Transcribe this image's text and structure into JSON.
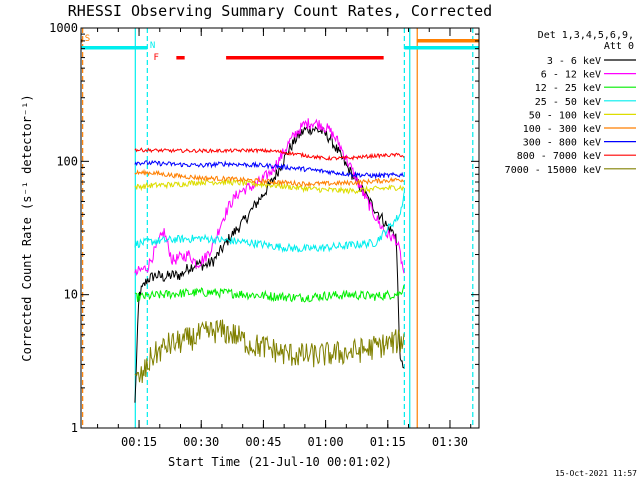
{
  "chart_data": {
    "type": "line",
    "title": "RHESSI Observing Summary Count Rates, Corrected",
    "xlabel": "Start Time (21-Jul-10 00:01:02)",
    "ylabel": "Corrected Count Rate (s⁻¹ detector⁻¹)",
    "footer": "15-Oct-2021 11:57",
    "yscale": "log",
    "ylim": [
      1,
      1000
    ],
    "xlim_minutes": [
      1,
      97
    ],
    "x_unit": "minutes since 00:00",
    "yticks": [
      {
        "value": 1,
        "label": "1"
      },
      {
        "value": 10,
        "label": "10"
      },
      {
        "value": 100,
        "label": "100"
      },
      {
        "value": 1000,
        "label": "1000"
      }
    ],
    "xticks": [
      {
        "value": 15,
        "label": "00:15"
      },
      {
        "value": 30,
        "label": "00:30"
      },
      {
        "value": 45,
        "label": "00:45"
      },
      {
        "value": 60,
        "label": "01:00"
      },
      {
        "value": 75,
        "label": "01:15"
      },
      {
        "value": 90,
        "label": "01:30"
      }
    ],
    "legend": {
      "placement": "right",
      "header": [
        "Det 1,3,4,5,6,9,",
        "Att 0"
      ]
    },
    "series": [
      {
        "name": "3 - 6 keV",
        "color": "#000000",
        "x": [
          14,
          15,
          17,
          19,
          21,
          23,
          25,
          27,
          29,
          31,
          33,
          35,
          37,
          39,
          41,
          43,
          45,
          47,
          49,
          51,
          53,
          55,
          57,
          59,
          61,
          63,
          65,
          67,
          69,
          71,
          73,
          75,
          77,
          78,
          79
        ],
        "y": [
          1.5,
          10,
          13,
          14,
          13.5,
          14,
          14,
          16,
          17,
          16.5,
          18,
          22,
          27,
          32,
          38,
          47,
          57,
          70,
          90,
          120,
          150,
          172,
          176,
          168,
          150,
          118,
          92,
          75,
          60,
          48,
          40,
          32,
          28,
          3,
          3
        ]
      },
      {
        "name": "6 - 12 keV",
        "color": "#ff00ff",
        "x": [
          14,
          15,
          17,
          19,
          21,
          23,
          25,
          27,
          29,
          31,
          33,
          35,
          37,
          39,
          41,
          43,
          45,
          47,
          49,
          51,
          53,
          55,
          57,
          59,
          61,
          63,
          65,
          67,
          69,
          71,
          73,
          75,
          77,
          78,
          79
        ],
        "y": [
          14,
          15,
          16,
          22,
          30,
          18,
          19,
          20,
          17,
          19,
          24,
          36,
          48,
          58,
          63,
          66,
          74,
          85,
          105,
          135,
          165,
          190,
          196,
          188,
          170,
          140,
          105,
          78,
          58,
          44,
          34,
          28,
          26,
          20,
          14
        ]
      },
      {
        "name": "12 - 25 keV",
        "color": "#00ee00",
        "x": [
          14,
          18,
          24,
          30,
          36,
          42,
          48,
          54,
          60,
          66,
          72,
          78,
          79
        ],
        "y": [
          9.5,
          9.8,
          10.2,
          10.4,
          10.3,
          10.0,
          9.7,
          9.5,
          9.8,
          10.0,
          9.7,
          10.2,
          12
        ]
      },
      {
        "name": "25 - 50 keV",
        "color": "#00eeee",
        "x": [
          14,
          18,
          24,
          30,
          36,
          42,
          48,
          54,
          60,
          66,
          72,
          78,
          79
        ],
        "y": [
          24,
          25,
          26,
          26.5,
          25.5,
          24.5,
          23,
          22,
          22.5,
          23.5,
          24.5,
          40,
          60
        ]
      },
      {
        "name": "50 - 100 keV",
        "color": "#dddd00",
        "x": [
          14,
          18,
          24,
          30,
          36,
          42,
          48,
          54,
          60,
          66,
          72,
          78,
          79
        ],
        "y": [
          64,
          66,
          67,
          70,
          70,
          68,
          66,
          63,
          61,
          60,
          62,
          64,
          62
        ]
      },
      {
        "name": "100 - 300 keV",
        "color": "#ff7f00",
        "x": [
          14,
          18,
          24,
          30,
          36,
          42,
          48,
          54,
          60,
          66,
          72,
          78,
          79
        ],
        "y": [
          82,
          82,
          78,
          75,
          74,
          72,
          70,
          68,
          68,
          69,
          71,
          73,
          72
        ]
      },
      {
        "name": "300 - 800 keV",
        "color": "#0000ff",
        "x": [
          14,
          18,
          24,
          30,
          36,
          42,
          48,
          54,
          60,
          66,
          72,
          78,
          79
        ],
        "y": [
          98,
          97,
          95,
          93,
          96,
          94,
          92,
          88,
          84,
          80,
          78,
          79,
          80
        ]
      },
      {
        "name": "800 - 7000 keV",
        "color": "#ff0000",
        "x": [
          14,
          18,
          24,
          30,
          36,
          42,
          48,
          54,
          60,
          66,
          72,
          78,
          79
        ],
        "y": [
          122,
          121,
          120,
          120,
          120,
          121,
          119,
          112,
          105,
          106,
          110,
          112,
          108
        ]
      },
      {
        "name": "7000 - 15000 keV",
        "color": "#808000",
        "x": [
          14,
          16,
          18,
          22,
          26,
          30,
          34,
          38,
          42,
          46,
          50,
          54,
          58,
          62,
          66,
          70,
          74,
          78,
          79
        ],
        "y": [
          2.2,
          2.5,
          3.4,
          4.2,
          4.5,
          5.0,
          5.4,
          5.0,
          4.2,
          4.0,
          3.6,
          3.5,
          3.5,
          3.6,
          3.7,
          3.9,
          4.2,
          4.5,
          4.6
        ]
      }
    ],
    "flag_bars": [
      {
        "label": "S",
        "color": "#ff7f00",
        "segments": [
          [
            1,
            1.4
          ],
          [
            82,
            97
          ]
        ]
      },
      {
        "label": "N",
        "color": "#00eeee",
        "segments": [
          [
            1,
            17
          ],
          [
            79,
            97
          ]
        ]
      },
      {
        "label": "F",
        "color": "#ff0000",
        "segments": [
          [
            24,
            26
          ],
          [
            36,
            74
          ]
        ]
      }
    ],
    "vertical_markers": [
      {
        "x": 1.4,
        "color": "#ff7f00",
        "style": "dashed"
      },
      {
        "x": 14.1,
        "color": "#00eeee",
        "style": "solid"
      },
      {
        "x": 17.0,
        "color": "#00eeee",
        "style": "dashed"
      },
      {
        "x": 79.0,
        "color": "#00eeee",
        "style": "dashed"
      },
      {
        "x": 80.3,
        "color": "#00eeee",
        "style": "solid"
      },
      {
        "x": 82.1,
        "color": "#ff7f00",
        "style": "solid"
      },
      {
        "x": 95.5,
        "color": "#00eeee",
        "style": "dashed"
      }
    ]
  }
}
